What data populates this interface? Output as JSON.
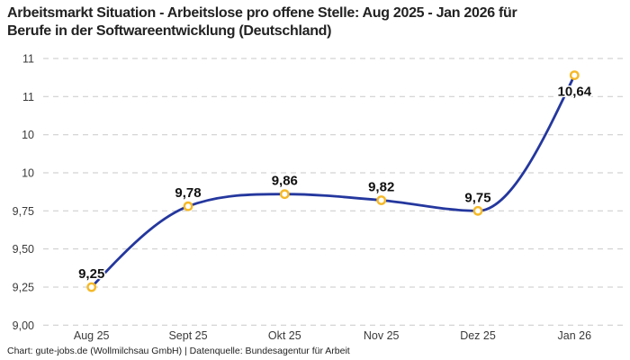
{
  "header": {
    "title_lines": [
      "Arbeitsmarkt Situation - Arbeitslose pro offene Stelle: Aug 2025 - Jan 2026 für",
      "Berufe in der Softwareentwicklung (Deutschland)"
    ]
  },
  "footer": {
    "credit": "Chart: gute-jobs.de (Wollmilchsau GmbH) | Datenquelle: Bundesagentur für Arbeit"
  },
  "chart_data": {
    "type": "line",
    "title": "Arbeitsmarkt Situation - Arbeitslose pro offene Stelle: Aug 2025 - Jan 2026 für Berufe in der Softwareentwicklung (Deutschland)",
    "categories": [
      "Aug 25",
      "Sept 25",
      "Okt 25",
      "Nov 25",
      "Dez 25",
      "Jan 26"
    ],
    "values": [
      9.25,
      9.78,
      9.86,
      9.82,
      9.75,
      10.64
    ],
    "point_labels": [
      "9,25",
      "9,78",
      "9,86",
      "9,82",
      "9,75",
      "10,64"
    ],
    "point_label_side": [
      "above",
      "above",
      "above",
      "above",
      "above",
      "below"
    ],
    "y_ticks": [
      {
        "value": 9.0,
        "label": "9,00"
      },
      {
        "value": 9.25,
        "label": "9,25"
      },
      {
        "value": 9.5,
        "label": "9,50"
      },
      {
        "value": 9.75,
        "label": "9,75"
      },
      {
        "value": 10.0,
        "label": "10"
      },
      {
        "value": 10.25,
        "label": "10"
      },
      {
        "value": 10.5,
        "label": "11"
      },
      {
        "value": 10.75,
        "label": "11"
      }
    ],
    "ylim": [
      9.0,
      10.8
    ],
    "grid": "dashed-horizontal",
    "legend": "none",
    "curve": "monotone",
    "colors": {
      "line": "#24379E",
      "marker_ring": "#F5B928",
      "marker_fill": "#FFFFFF",
      "grid_line": "#C9C9C9",
      "tick_text": "#3A3A3A",
      "point_label_text": "#111111",
      "title_text": "#222222"
    }
  }
}
